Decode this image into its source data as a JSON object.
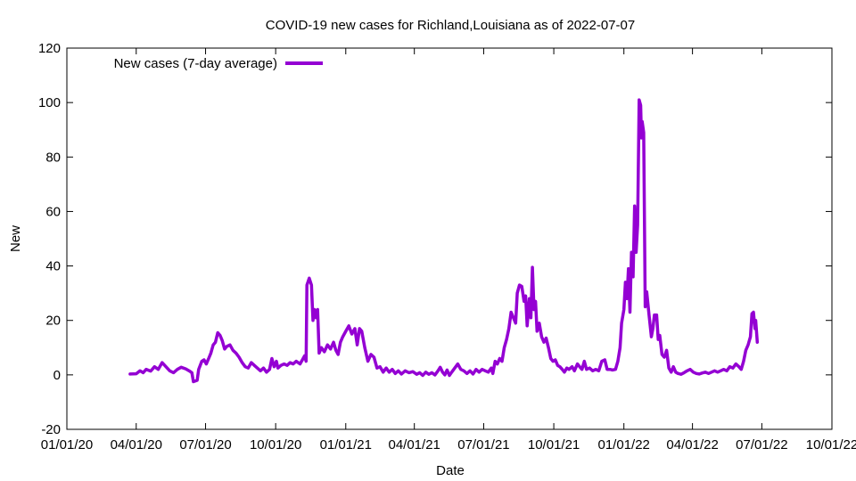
{
  "chart_data": {
    "type": "line",
    "title": "COVID-19 new cases for Richland,Louisiana as of 2022-07-07",
    "xlabel": "Date",
    "ylabel": "New",
    "xlim": [
      "2020-01-01",
      "2022-10-01"
    ],
    "ylim": [
      -20,
      120
    ],
    "x_ticks": [
      "01/01/20",
      "04/01/20",
      "07/01/20",
      "10/01/20",
      "01/01/21",
      "04/01/21",
      "07/01/21",
      "10/01/21",
      "01/01/22",
      "04/01/22",
      "07/01/22",
      "10/01/22"
    ],
    "x_tick_dates": [
      "2020-01-01",
      "2020-04-01",
      "2020-07-01",
      "2020-10-01",
      "2021-01-01",
      "2021-04-01",
      "2021-07-01",
      "2021-10-01",
      "2022-01-01",
      "2022-04-01",
      "2022-07-01",
      "2022-10-01"
    ],
    "y_ticks": [
      -20,
      0,
      20,
      40,
      60,
      80,
      100,
      120
    ],
    "grid": false,
    "legend_position": "top-left",
    "series": [
      {
        "name": "New cases (7-day average)",
        "color": "#9400d3",
        "points": [
          [
            "2020-03-24",
            0.3
          ],
          [
            "2020-04-01",
            0.4
          ],
          [
            "2020-04-06",
            1.5
          ],
          [
            "2020-04-10",
            0.8
          ],
          [
            "2020-04-14",
            2.0
          ],
          [
            "2020-04-20",
            1.4
          ],
          [
            "2020-04-25",
            3.0
          ],
          [
            "2020-04-30",
            2.0
          ],
          [
            "2020-05-05",
            4.5
          ],
          [
            "2020-05-10",
            3.0
          ],
          [
            "2020-05-15",
            1.5
          ],
          [
            "2020-05-20",
            0.8
          ],
          [
            "2020-05-25",
            2.0
          ],
          [
            "2020-05-30",
            2.8
          ],
          [
            "2020-06-05",
            2.2
          ],
          [
            "2020-06-10",
            1.4
          ],
          [
            "2020-06-13",
            0.8
          ],
          [
            "2020-06-15",
            -2.5
          ],
          [
            "2020-06-20",
            -2.0
          ],
          [
            "2020-06-22",
            2.0
          ],
          [
            "2020-06-26",
            5.0
          ],
          [
            "2020-06-29",
            5.5
          ],
          [
            "2020-07-02",
            4.0
          ],
          [
            "2020-07-05",
            6.0
          ],
          [
            "2020-07-08",
            8.0
          ],
          [
            "2020-07-11",
            11.0
          ],
          [
            "2020-07-14",
            12.0
          ],
          [
            "2020-07-17",
            15.5
          ],
          [
            "2020-07-20",
            14.5
          ],
          [
            "2020-07-23",
            12.5
          ],
          [
            "2020-07-26",
            9.5
          ],
          [
            "2020-07-29",
            10.5
          ],
          [
            "2020-08-02",
            11.0
          ],
          [
            "2020-08-06",
            9.0
          ],
          [
            "2020-08-10",
            8.0
          ],
          [
            "2020-08-14",
            6.5
          ],
          [
            "2020-08-18",
            4.5
          ],
          [
            "2020-08-22",
            3.0
          ],
          [
            "2020-08-26",
            2.5
          ],
          [
            "2020-08-30",
            4.5
          ],
          [
            "2020-09-03",
            3.5
          ],
          [
            "2020-09-07",
            2.5
          ],
          [
            "2020-09-11",
            1.5
          ],
          [
            "2020-09-15",
            2.5
          ],
          [
            "2020-09-19",
            1.0
          ],
          [
            "2020-09-23",
            2.0
          ],
          [
            "2020-09-26",
            6.0
          ],
          [
            "2020-09-29",
            3.0
          ],
          [
            "2020-10-02",
            5.0
          ],
          [
            "2020-10-04",
            2.5
          ],
          [
            "2020-10-08",
            3.5
          ],
          [
            "2020-10-12",
            4.0
          ],
          [
            "2020-10-16",
            3.5
          ],
          [
            "2020-10-20",
            4.5
          ],
          [
            "2020-10-24",
            4.0
          ],
          [
            "2020-10-28",
            5.0
          ],
          [
            "2020-11-02",
            4.0
          ],
          [
            "2020-11-05",
            5.5
          ],
          [
            "2020-11-08",
            7.0
          ],
          [
            "2020-11-10",
            5.0
          ],
          [
            "2020-11-11",
            33.0
          ],
          [
            "2020-11-14",
            35.5
          ],
          [
            "2020-11-17",
            33.0
          ],
          [
            "2020-11-19",
            20.0
          ],
          [
            "2020-11-21",
            24.0
          ],
          [
            "2020-11-23",
            21.0
          ],
          [
            "2020-11-25",
            24.0
          ],
          [
            "2020-11-27",
            8.0
          ],
          [
            "2020-11-30",
            10.0
          ],
          [
            "2020-12-04",
            8.5
          ],
          [
            "2020-12-08",
            11.0
          ],
          [
            "2020-12-12",
            9.5
          ],
          [
            "2020-12-16",
            12.0
          ],
          [
            "2020-12-19",
            9.0
          ],
          [
            "2020-12-22",
            7.5
          ],
          [
            "2020-12-25",
            12.0
          ],
          [
            "2020-12-28",
            14.0
          ],
          [
            "2021-01-01",
            16.0
          ],
          [
            "2021-01-05",
            18.0
          ],
          [
            "2021-01-09",
            15.0
          ],
          [
            "2021-01-13",
            17.0
          ],
          [
            "2021-01-16",
            11.0
          ],
          [
            "2021-01-19",
            17.0
          ],
          [
            "2021-01-22",
            16.0
          ],
          [
            "2021-01-26",
            10.0
          ],
          [
            "2021-01-30",
            5.0
          ],
          [
            "2021-02-03",
            7.5
          ],
          [
            "2021-02-07",
            6.5
          ],
          [
            "2021-02-11",
            2.5
          ],
          [
            "2021-02-15",
            3.0
          ],
          [
            "2021-02-19",
            1.0
          ],
          [
            "2021-02-23",
            2.5
          ],
          [
            "2021-02-27",
            1.0
          ],
          [
            "2021-03-03",
            2.0
          ],
          [
            "2021-03-07",
            0.5
          ],
          [
            "2021-03-11",
            1.5
          ],
          [
            "2021-03-15",
            0.3
          ],
          [
            "2021-03-20",
            1.5
          ],
          [
            "2021-03-25",
            0.8
          ],
          [
            "2021-03-30",
            1.2
          ],
          [
            "2021-04-04",
            0.2
          ],
          [
            "2021-04-08",
            0.8
          ],
          [
            "2021-04-12",
            -0.2
          ],
          [
            "2021-04-16",
            1.0
          ],
          [
            "2021-04-20",
            0.2
          ],
          [
            "2021-04-24",
            0.8
          ],
          [
            "2021-04-28",
            0.0
          ],
          [
            "2021-05-02",
            1.5
          ],
          [
            "2021-05-05",
            2.8
          ],
          [
            "2021-05-08",
            1.0
          ],
          [
            "2021-05-11",
            0.0
          ],
          [
            "2021-05-14",
            1.8
          ],
          [
            "2021-05-17",
            -0.2
          ],
          [
            "2021-05-20",
            1.0
          ],
          [
            "2021-05-24",
            2.5
          ],
          [
            "2021-05-28",
            4.0
          ],
          [
            "2021-06-01",
            2.0
          ],
          [
            "2021-06-05",
            1.5
          ],
          [
            "2021-06-09",
            0.5
          ],
          [
            "2021-06-13",
            1.5
          ],
          [
            "2021-06-17",
            0.3
          ],
          [
            "2021-06-21",
            2.0
          ],
          [
            "2021-06-25",
            1.0
          ],
          [
            "2021-06-29",
            2.0
          ],
          [
            "2021-07-03",
            1.5
          ],
          [
            "2021-07-07",
            1.0
          ],
          [
            "2021-07-11",
            2.5
          ],
          [
            "2021-07-13",
            0.5
          ],
          [
            "2021-07-16",
            5.0
          ],
          [
            "2021-07-19",
            4.0
          ],
          [
            "2021-07-22",
            6.0
          ],
          [
            "2021-07-25",
            5.0
          ],
          [
            "2021-07-28",
            10.0
          ],
          [
            "2021-07-31",
            13.0
          ],
          [
            "2021-08-03",
            17.0
          ],
          [
            "2021-08-06",
            23.0
          ],
          [
            "2021-08-09",
            21.0
          ],
          [
            "2021-08-12",
            19.0
          ],
          [
            "2021-08-14",
            30.0
          ],
          [
            "2021-08-17",
            33.0
          ],
          [
            "2021-08-20",
            32.5
          ],
          [
            "2021-08-23",
            27.0
          ],
          [
            "2021-08-25",
            29.0
          ],
          [
            "2021-08-27",
            18.0
          ],
          [
            "2021-08-30",
            28.0
          ],
          [
            "2021-09-01",
            21.0
          ],
          [
            "2021-09-03",
            39.5
          ],
          [
            "2021-09-05",
            24.0
          ],
          [
            "2021-09-07",
            27.0
          ],
          [
            "2021-09-09",
            16.0
          ],
          [
            "2021-09-12",
            19.0
          ],
          [
            "2021-09-15",
            14.0
          ],
          [
            "2021-09-18",
            12.0
          ],
          [
            "2021-09-21",
            13.5
          ],
          [
            "2021-09-24",
            10.0
          ],
          [
            "2021-09-27",
            6.0
          ],
          [
            "2021-09-30",
            5.0
          ],
          [
            "2021-10-03",
            5.5
          ],
          [
            "2021-10-06",
            3.5
          ],
          [
            "2021-10-09",
            3.0
          ],
          [
            "2021-10-12",
            2.0
          ],
          [
            "2021-10-15",
            1.0
          ],
          [
            "2021-10-18",
            2.5
          ],
          [
            "2021-10-21",
            2.0
          ],
          [
            "2021-10-25",
            3.0
          ],
          [
            "2021-10-28",
            1.5
          ],
          [
            "2021-11-01",
            4.0
          ],
          [
            "2021-11-04",
            3.0
          ],
          [
            "2021-11-07",
            2.0
          ],
          [
            "2021-11-10",
            5.0
          ],
          [
            "2021-11-13",
            2.0
          ],
          [
            "2021-11-17",
            2.5
          ],
          [
            "2021-11-21",
            1.5
          ],
          [
            "2021-11-25",
            2.0
          ],
          [
            "2021-11-29",
            1.5
          ],
          [
            "2021-12-03",
            5.0
          ],
          [
            "2021-12-07",
            5.5
          ],
          [
            "2021-12-10",
            2.0
          ],
          [
            "2021-12-14",
            2.0
          ],
          [
            "2021-12-17",
            1.8
          ],
          [
            "2021-12-21",
            2.0
          ],
          [
            "2021-12-24",
            5.0
          ],
          [
            "2021-12-27",
            10.0
          ],
          [
            "2021-12-29",
            19.0
          ],
          [
            "2022-01-01",
            24.0
          ],
          [
            "2022-01-03",
            34.0
          ],
          [
            "2022-01-05",
            28.0
          ],
          [
            "2022-01-07",
            39.0
          ],
          [
            "2022-01-09",
            23.0
          ],
          [
            "2022-01-11",
            45.0
          ],
          [
            "2022-01-13",
            36.0
          ],
          [
            "2022-01-15",
            62.0
          ],
          [
            "2022-01-17",
            45.0
          ],
          [
            "2022-01-19",
            55.0
          ],
          [
            "2022-01-21",
            101.0
          ],
          [
            "2022-01-23",
            99.0
          ],
          [
            "2022-01-24",
            87.0
          ],
          [
            "2022-01-25",
            93.0
          ],
          [
            "2022-01-27",
            89.0
          ],
          [
            "2022-01-29",
            25.0
          ],
          [
            "2022-01-31",
            30.5
          ],
          [
            "2022-02-03",
            22.0
          ],
          [
            "2022-02-06",
            14.0
          ],
          [
            "2022-02-08",
            17.0
          ],
          [
            "2022-02-10",
            22.0
          ],
          [
            "2022-02-13",
            22.0
          ],
          [
            "2022-02-15",
            13.0
          ],
          [
            "2022-02-17",
            14.5
          ],
          [
            "2022-02-20",
            7.5
          ],
          [
            "2022-02-23",
            6.5
          ],
          [
            "2022-02-26",
            9.0
          ],
          [
            "2022-03-01",
            2.5
          ],
          [
            "2022-03-04",
            1.0
          ],
          [
            "2022-03-07",
            3.0
          ],
          [
            "2022-03-10",
            1.0
          ],
          [
            "2022-03-13",
            0.5
          ],
          [
            "2022-03-17",
            0.2
          ],
          [
            "2022-03-21",
            0.8
          ],
          [
            "2022-03-25",
            1.5
          ],
          [
            "2022-03-29",
            2.0
          ],
          [
            "2022-04-02",
            1.0
          ],
          [
            "2022-04-06",
            0.5
          ],
          [
            "2022-04-10",
            0.3
          ],
          [
            "2022-04-14",
            0.7
          ],
          [
            "2022-04-18",
            1.0
          ],
          [
            "2022-04-22",
            0.5
          ],
          [
            "2022-04-26",
            1.0
          ],
          [
            "2022-04-30",
            1.5
          ],
          [
            "2022-05-04",
            1.0
          ],
          [
            "2022-05-08",
            1.5
          ],
          [
            "2022-05-12",
            2.0
          ],
          [
            "2022-05-16",
            1.5
          ],
          [
            "2022-05-20",
            3.0
          ],
          [
            "2022-05-24",
            2.5
          ],
          [
            "2022-05-28",
            4.0
          ],
          [
            "2022-06-01",
            3.0
          ],
          [
            "2022-06-04",
            2.0
          ],
          [
            "2022-06-07",
            5.0
          ],
          [
            "2022-06-10",
            9.0
          ],
          [
            "2022-06-13",
            11.0
          ],
          [
            "2022-06-16",
            14.0
          ],
          [
            "2022-06-18",
            22.5
          ],
          [
            "2022-06-20",
            23.0
          ],
          [
            "2022-06-22",
            17.0
          ],
          [
            "2022-06-23",
            20.0
          ],
          [
            "2022-06-25",
            12.0
          ]
        ]
      }
    ]
  }
}
